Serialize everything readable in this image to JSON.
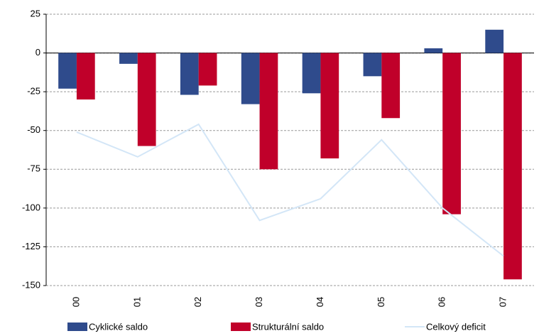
{
  "chart_data": {
    "type": "bar",
    "categories": [
      "00",
      "01",
      "02",
      "03",
      "04",
      "05",
      "06",
      "07"
    ],
    "series": [
      {
        "name": "Cyklické saldo",
        "color": "#2f4b8c",
        "values": [
          -23,
          -7,
          -27,
          -33,
          -26,
          -15,
          3,
          15
        ]
      },
      {
        "name": "Strukturální saldo",
        "color": "#c0002a",
        "values": [
          -30,
          -60,
          -21,
          -75,
          -68,
          -42,
          -104,
          -146
        ]
      },
      {
        "name": "Celkový deficit",
        "type": "line",
        "color": "#d3e6f7",
        "values": [
          -51,
          -67,
          -46,
          -108,
          -94,
          -56,
          -100,
          -131
        ]
      }
    ],
    "ylim": [
      -150,
      25
    ],
    "yticks": [
      -150,
      -125,
      -100,
      -75,
      -50,
      -25,
      0,
      25
    ],
    "grid": true
  }
}
